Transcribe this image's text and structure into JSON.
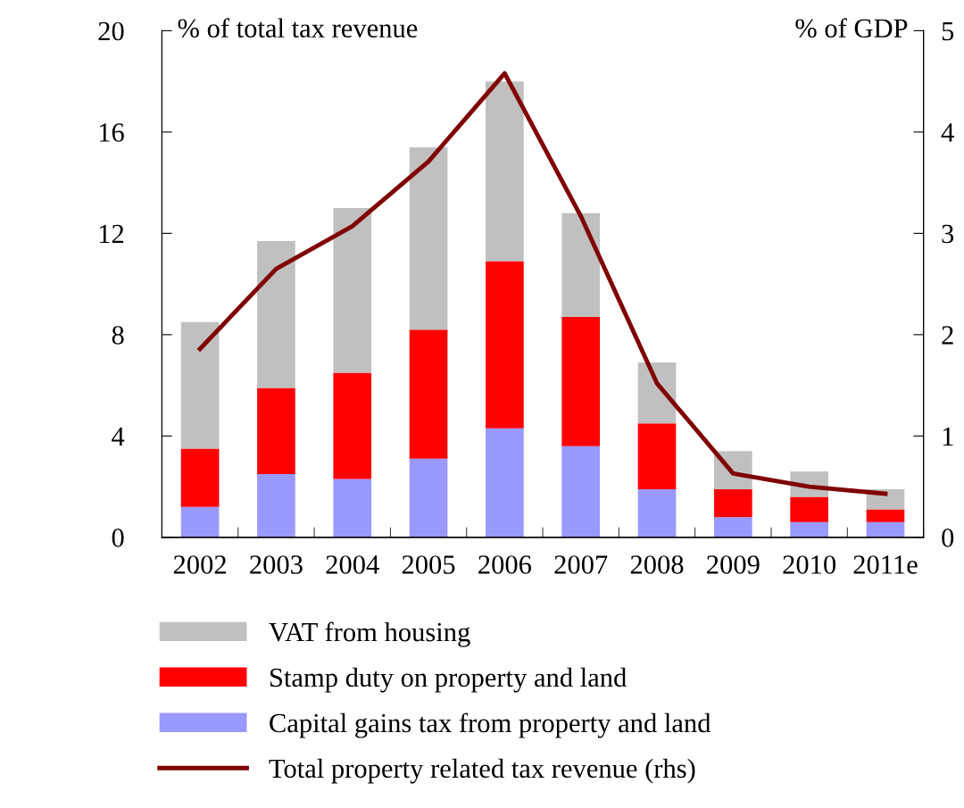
{
  "chart_data": {
    "type": "bar",
    "stacked": true,
    "ylabel": "% of total tax revenue",
    "y2label": "% of GDP",
    "categories": [
      "2002",
      "2003",
      "2004",
      "2005",
      "2006",
      "2007",
      "2008",
      "2009",
      "2010",
      "2011e"
    ],
    "series": [
      {
        "name": "Capital gains tax from property and land",
        "color": "#9999ff",
        "values": [
          1.2,
          2.5,
          2.3,
          3.1,
          4.3,
          3.6,
          1.9,
          0.8,
          0.6,
          0.6
        ]
      },
      {
        "name": "Stamp duty on property and land",
        "color": "#ff0000",
        "values": [
          2.3,
          3.4,
          4.2,
          5.1,
          6.6,
          5.1,
          2.6,
          1.1,
          1.0,
          0.5
        ]
      },
      {
        "name": "VAT from housing",
        "color": "#c0c0c0",
        "values": [
          5.0,
          5.8,
          6.5,
          7.2,
          7.1,
          4.1,
          2.4,
          1.5,
          1.0,
          0.8
        ]
      },
      {
        "name": "Total property related tax revenue (rhs)",
        "color": "#800000",
        "type": "line",
        "axis": "y2",
        "values": [
          1.86,
          2.65,
          3.07,
          3.71,
          4.58,
          3.17,
          1.52,
          0.63,
          0.5,
          0.43
        ]
      }
    ],
    "ylim": [
      0,
      20
    ],
    "yticks": [
      0,
      4,
      8,
      12,
      16,
      20
    ],
    "y2lim": [
      0,
      5
    ],
    "y2ticks": [
      0,
      1,
      2,
      3,
      4,
      5
    ],
    "grid": false,
    "legend": "bottom"
  }
}
